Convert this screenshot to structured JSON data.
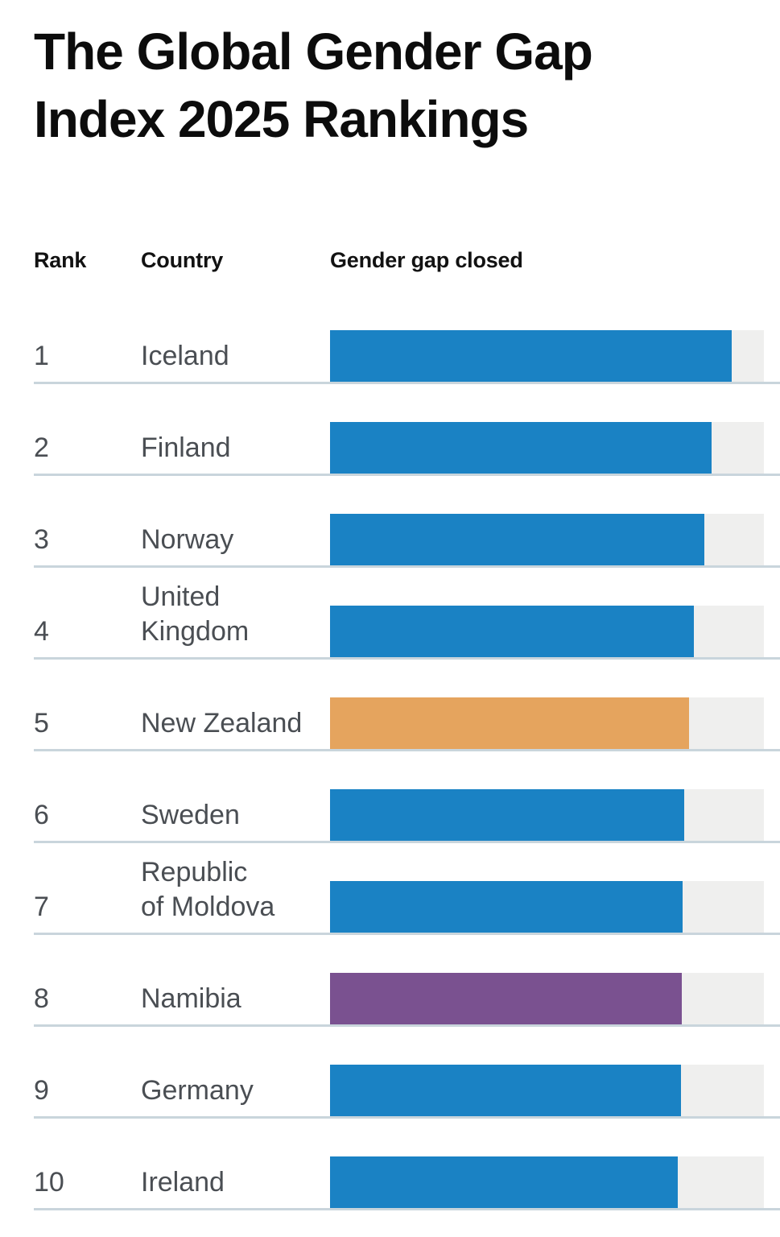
{
  "title": {
    "text": "The Global Gender Gap\nIndex 2025 Rankings"
  },
  "table": {
    "headers": {
      "rank": "Rank",
      "country": "Country",
      "value": "Gender gap closed"
    }
  },
  "chart_data": {
    "type": "bar",
    "orientation": "horizontal",
    "title": "The Global Gender Gap Index 2025 Rankings",
    "value_axis": {
      "label": "Gender gap closed",
      "min": 0,
      "max": 100,
      "unit": "%",
      "grid": false,
      "tick_labels_visible": false
    },
    "legend": "none",
    "colors": {
      "blue": "#1a82c4",
      "orange": "#e5a45e",
      "purple": "#7a5190",
      "track": "#efefee",
      "separator": "#c9d5dc"
    },
    "rows": [
      {
        "rank": 1,
        "country": "Iceland",
        "value_pct": 92.6,
        "color": "blue"
      },
      {
        "rank": 2,
        "country": "Finland",
        "value_pct": 87.9,
        "color": "blue"
      },
      {
        "rank": 3,
        "country": "Norway",
        "value_pct": 86.3,
        "color": "blue"
      },
      {
        "rank": 4,
        "country": "United\nKingdom",
        "value_pct": 83.8,
        "color": "blue"
      },
      {
        "rank": 5,
        "country": "New Zealand",
        "value_pct": 82.7,
        "color": "orange"
      },
      {
        "rank": 6,
        "country": "Sweden",
        "value_pct": 81.7,
        "color": "blue"
      },
      {
        "rank": 7,
        "country": "Republic\nof Moldova",
        "value_pct": 81.3,
        "color": "blue"
      },
      {
        "rank": 8,
        "country": "Namibia",
        "value_pct": 81.1,
        "color": "purple"
      },
      {
        "rank": 9,
        "country": "Germany",
        "value_pct": 80.9,
        "color": "blue"
      },
      {
        "rank": 10,
        "country": "Ireland",
        "value_pct": 80.1,
        "color": "blue"
      }
    ]
  }
}
